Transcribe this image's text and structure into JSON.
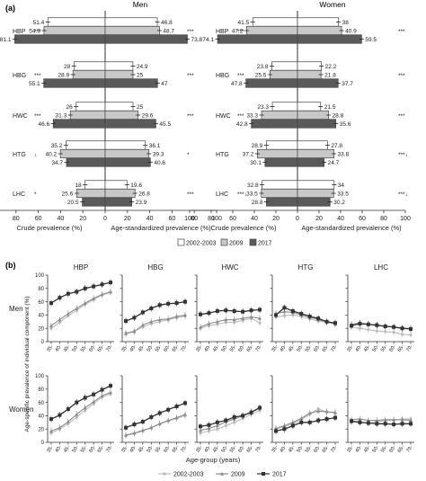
{
  "colors": {
    "c2002": "#ffffff",
    "c2009": "#c8c8c8",
    "c2017": "#5a5a5a",
    "line2002": "#bdbdbd",
    "line2009": "#8c8c8c",
    "line2017": "#333333",
    "axis": "#333333"
  },
  "chart_data": [
    {
      "type": "bar",
      "panel_label": "(a)",
      "orientation": "horizontal-back-to-back",
      "groups": [
        "Men",
        "Women"
      ],
      "categories": [
        "HBP",
        "HBG",
        "HWC",
        "HTG",
        "LHC"
      ],
      "series_names": [
        "2002-2003",
        "2009",
        "2017"
      ],
      "left_axis": {
        "label": "Crude prevalence (%)",
        "ticks": [
          "100",
          "80",
          "60",
          "40",
          "20",
          "0"
        ]
      },
      "right_axis": {
        "label": "Age-standardized prevalence (%)",
        "ticks": [
          "0",
          "20",
          "40",
          "60",
          "80",
          "100"
        ]
      },
      "legend": [
        "2002-2003",
        "2009",
        "2017"
      ],
      "data": {
        "Men": {
          "HBP": {
            "crude": [
              51.4,
              54.9,
              81.1
            ],
            "standardized": [
              46.8,
              48.7,
              73.8
            ],
            "left_mark": "***",
            "right_mark": "***"
          },
          "HBG": {
            "crude": [
              28.0,
              28.9,
              55.1
            ],
            "standardized": [
              24.9,
              25.0,
              47.0
            ],
            "left_mark": "***",
            "right_mark": "***"
          },
          "HWC": {
            "crude": [
              26.0,
              31.3,
              46.6
            ],
            "standardized": [
              25.0,
              29.6,
              45.5
            ],
            "left_mark": "***",
            "right_mark": "***"
          },
          "HTG": {
            "crude": [
              35.2,
              40.2,
              34.7
            ],
            "standardized": [
              36.1,
              39.3,
              40.6
            ],
            "left_mark": "↓",
            "right_mark": "*"
          },
          "LHC": {
            "crude": [
              18.0,
              25.6,
              20.5
            ],
            "standardized": [
              19.6,
              26.8,
              23.9
            ],
            "left_mark": "*",
            "right_mark": "***"
          }
        },
        "Women": {
          "HBP": {
            "crude": [
              41.5,
              47.2,
              74.1
            ],
            "standardized": [
              38.0,
              40.9,
              59.5
            ],
            "left_mark": "***",
            "right_mark": "***"
          },
          "HBG": {
            "crude": [
              23.8,
              25.5,
              47.8
            ],
            "standardized": [
              22.2,
              21.8,
              37.7
            ],
            "left_mark": "***",
            "right_mark": "***"
          },
          "HWC": {
            "crude": [
              23.3,
              33.3,
              42.8
            ],
            "standardized": [
              21.5,
              28.8,
              35.6
            ],
            "left_mark": "***",
            "right_mark": "***"
          },
          "HTG": {
            "crude": [
              28.9,
              37.2,
              30.1
            ],
            "standardized": [
              27.8,
              33.8,
              24.7
            ],
            "left_mark": "",
            "right_mark": "***↓"
          },
          "LHC": {
            "crude": [
              32.8,
              33.5,
              28.8
            ],
            "standardized": [
              34.0,
              33.5,
              30.2
            ],
            "left_mark": "***↓",
            "right_mark": "***↓"
          }
        }
      }
    },
    {
      "type": "line",
      "panel_label": "(b)",
      "title_columns": [
        "HBP",
        "HBG",
        "HWC",
        "HTG",
        "LHC"
      ],
      "rows": [
        "Men",
        "Women"
      ],
      "x": [
        "35-",
        "40-",
        "45-",
        "50-",
        "55-",
        "60-",
        "65-",
        "70-"
      ],
      "xlabel": "Age-group (years)",
      "ylabel": "Age-specific prevalence of individual component (%)",
      "yticks": [
        "0",
        "20",
        "40",
        "60",
        "80",
        "100"
      ],
      "ylim": [
        0,
        100
      ],
      "legend": [
        "2002-2003",
        "2009",
        "2017"
      ],
      "series": {
        "Men": {
          "HBP": {
            "2002-2003": [
              20,
              29,
              39,
              47,
              56,
              63,
              70,
              74
            ],
            "2009": [
              24,
              33,
              42,
              50,
              58,
              65,
              71,
              75
            ],
            "2017": [
              58,
              66,
              72,
              75,
              80,
              83,
              86,
              89
            ]
          },
          "HBG": {
            "2002-2003": [
              13,
              16,
              22,
              27,
              30,
              33,
              36,
              38
            ],
            "2009": [
              12,
              15,
              25,
              30,
              33,
              34,
              38,
              40
            ],
            "2017": [
              31,
              36,
              44,
              50,
              55,
              57,
              58,
              60
            ]
          },
          "HWC": {
            "2002-2003": [
              20,
              24,
              26,
              29,
              29,
              32,
              35,
              28
            ],
            "2009": [
              22,
              27,
              30,
              33,
              33,
              35,
              37,
              35
            ],
            "2017": [
              41,
              43,
              46,
              47,
              46,
              45,
              47,
              48
            ]
          },
          "HTG": {
            "2002-2003": [
              37,
              39,
              40,
              38,
              34,
              31,
              29,
              26
            ],
            "2009": [
              42,
              45,
              44,
              40,
              37,
              33,
              30,
              27
            ],
            "2017": [
              40,
              51,
              46,
              42,
              38,
              35,
              30,
              28
            ]
          },
          "LHC": {
            "2002-2003": [
              22,
              20,
              18,
              16,
              15,
              14,
              11,
              10
            ],
            "2009": [
              26,
              28,
              26,
              24,
              23,
              22,
              20,
              20
            ],
            "2017": [
              24,
              27,
              26,
              25,
              23,
              22,
              20,
              19
            ]
          }
        },
        "Women": {
          "HBP": {
            "2002-2003": [
              14,
              20,
              28,
              38,
              48,
              58,
              68,
              73
            ],
            "2009": [
              17,
              22,
              31,
              42,
              52,
              61,
              70,
              75
            ],
            "2017": [
              35,
              41,
              50,
              60,
              67,
              72,
              79,
              85
            ]
          },
          "HBG": {
            "2002-2003": [
              10,
              13,
              17,
              22,
              27,
              32,
              36,
              40
            ],
            "2009": [
              11,
              14,
              18,
              22,
              28,
              33,
              37,
              42
            ],
            "2017": [
              22,
              27,
              31,
              38,
              44,
              49,
              54,
              59
            ]
          },
          "HWC": {
            "2002-2003": [
              14,
              17,
              20,
              25,
              30,
              36,
              42,
              48
            ],
            "2009": [
              18,
              21,
              25,
              31,
              35,
              40,
              46,
              52
            ],
            "2017": [
              24,
              26,
              30,
              33,
              38,
              40,
              45,
              52
            ]
          },
          "HTG": {
            "2002-2003": [
              20,
              24,
              28,
              34,
              42,
              50,
              46,
              44
            ],
            "2009": [
              21,
              25,
              30,
              36,
              44,
              47,
              46,
              45
            ],
            "2017": [
              17,
              20,
              25,
              30,
              30,
              33,
              35,
              37
            ]
          },
          "LHC": {
            "2002-2003": [
              30,
              31,
              29,
              31,
              33,
              33,
              35,
              35
            ],
            "2009": [
              34,
              35,
              33,
              33,
              34,
              34,
              34,
              33
            ],
            "2017": [
              32,
              30,
              29,
              28,
              28,
              27,
              28,
              28
            ]
          }
        }
      }
    }
  ]
}
